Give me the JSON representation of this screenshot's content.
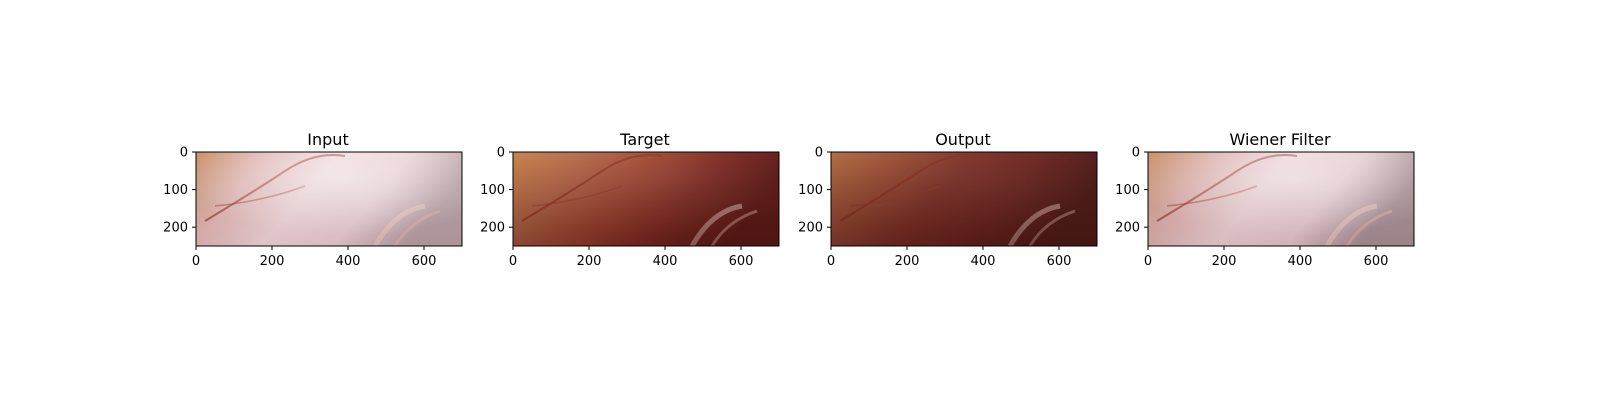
{
  "figure": {
    "panels": [
      {
        "id": "input",
        "title": "Input"
      },
      {
        "id": "target",
        "title": "Target"
      },
      {
        "id": "output",
        "title": "Output"
      },
      {
        "id": "wiener",
        "title": "Wiener Filter"
      }
    ],
    "x_ticks": [
      "0",
      "200",
      "400",
      "600"
    ],
    "y_ticks": [
      "0",
      "100",
      "200"
    ],
    "image_extent": {
      "width": 700,
      "height": 250
    }
  }
}
